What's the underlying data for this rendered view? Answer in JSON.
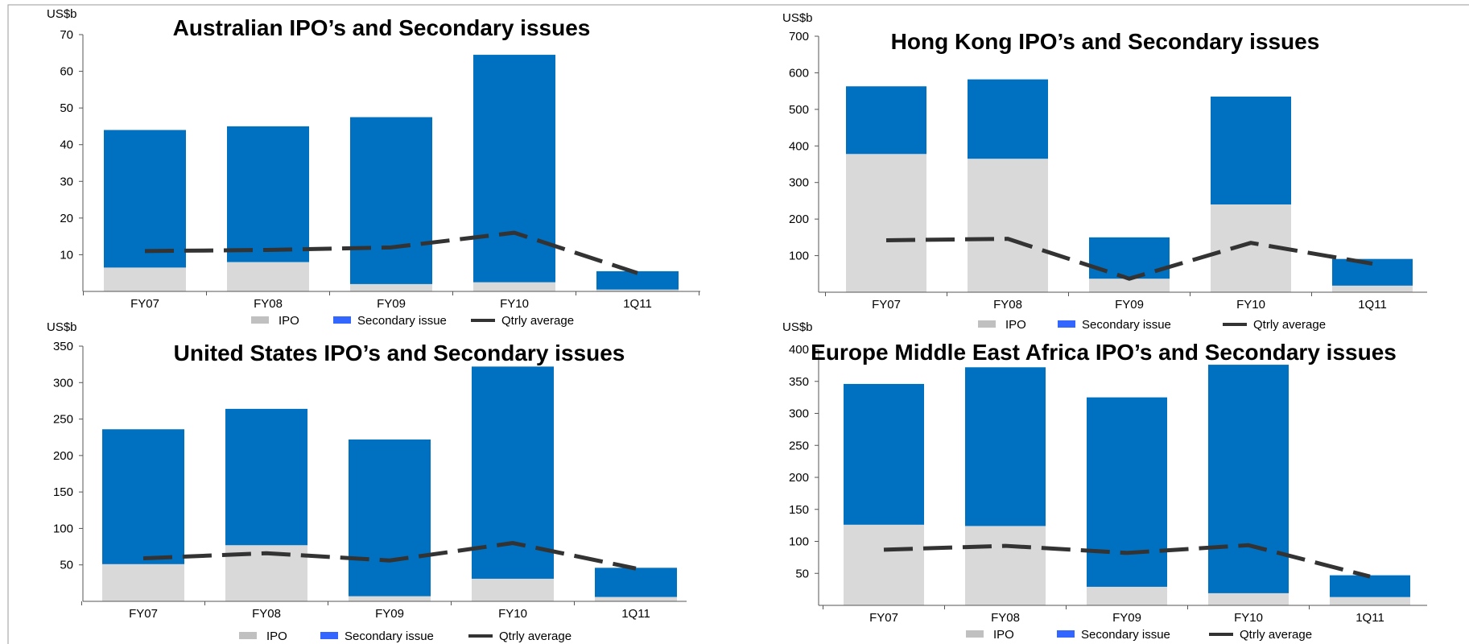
{
  "colors": {
    "ipo": "#d9d9d9",
    "secondary": "#0070c0",
    "legend_secondary": "#3366ff",
    "line": "#333333",
    "axis": "#555555"
  },
  "chart_data": [
    {
      "type": "bar",
      "stacked": true,
      "title": "Australian IPO’s and Secondary issues",
      "ylabel": "US$b",
      "ylim": [
        0,
        70
      ],
      "yticks": [
        10,
        20,
        30,
        40,
        50,
        60,
        70
      ],
      "categories": [
        "FY07",
        "FY08",
        "FY09",
        "FY10",
        "1Q11"
      ],
      "series": [
        {
          "name": "IPO",
          "kind": "bar",
          "values": [
            6.5,
            8,
            2,
            2.5,
            0.5
          ]
        },
        {
          "name": "Secondary issue",
          "kind": "bar",
          "values": [
            37.5,
            37,
            45.5,
            62,
            5
          ]
        },
        {
          "name": "Qtrly average",
          "kind": "line",
          "values": [
            11,
            11.3,
            12,
            16,
            5
          ]
        }
      ],
      "legend": [
        "IPO",
        "Secondary issue",
        "Qtrly average"
      ],
      "legend_position": "bottom",
      "grid": false
    },
    {
      "type": "bar",
      "stacked": true,
      "title": "Hong Kong IPO’s and Secondary issues",
      "ylabel": "US$b",
      "ylim": [
        0,
        700
      ],
      "yticks": [
        100,
        200,
        300,
        400,
        500,
        600,
        700
      ],
      "categories": [
        "FY07",
        "FY08",
        "FY09",
        "FY10",
        "1Q11"
      ],
      "series": [
        {
          "name": "IPO",
          "kind": "bar",
          "values": [
            378,
            365,
            37,
            240,
            18
          ]
        },
        {
          "name": "Secondary issue",
          "kind": "bar",
          "values": [
            185,
            217,
            113,
            295,
            73
          ]
        },
        {
          "name": "Qtrly average",
          "kind": "line",
          "values": [
            142,
            146,
            37,
            135,
            78
          ]
        }
      ],
      "legend": [
        "IPO",
        "Secondary issue",
        "Qtrly average"
      ],
      "legend_position": "bottom",
      "grid": false
    },
    {
      "type": "bar",
      "stacked": true,
      "title": "United States IPO’s and Secondary issues",
      "ylabel": "US$b",
      "ylim": [
        0,
        350
      ],
      "yticks": [
        50,
        100,
        150,
        200,
        250,
        300,
        350
      ],
      "categories": [
        "FY07",
        "FY08",
        "FY09",
        "FY10",
        "1Q11"
      ],
      "series": [
        {
          "name": "IPO",
          "kind": "bar",
          "values": [
            51,
            77,
            7,
            31,
            6
          ]
        },
        {
          "name": "Secondary issue",
          "kind": "bar",
          "values": [
            185,
            187,
            215,
            291,
            40
          ]
        },
        {
          "name": "Qtrly average",
          "kind": "line",
          "values": [
            59,
            66,
            56,
            80,
            45
          ]
        }
      ],
      "legend": [
        "IPO",
        "Secondary issue",
        "Qtrly average"
      ],
      "legend_position": "bottom",
      "grid": false
    },
    {
      "type": "bar",
      "stacked": true,
      "title": "Europe Middle East Africa IPO’s and Secondary issues",
      "ylabel": "US$b",
      "ylim": [
        0,
        400
      ],
      "yticks": [
        50,
        100,
        150,
        200,
        250,
        300,
        350,
        400
      ],
      "categories": [
        "FY07",
        "FY08",
        "FY09",
        "FY10",
        "1Q11"
      ],
      "series": [
        {
          "name": "IPO",
          "kind": "bar",
          "values": [
            126,
            124,
            29,
            19,
            13
          ]
        },
        {
          "name": "Secondary issue",
          "kind": "bar",
          "values": [
            220,
            248,
            296,
            357,
            34
          ]
        },
        {
          "name": "Qtrly average",
          "kind": "line",
          "values": [
            87,
            93,
            82,
            94,
            45
          ]
        }
      ],
      "legend": [
        "IPO",
        "Secondary issue",
        "Qtrly average"
      ],
      "legend_position": "bottom",
      "grid": false
    }
  ]
}
